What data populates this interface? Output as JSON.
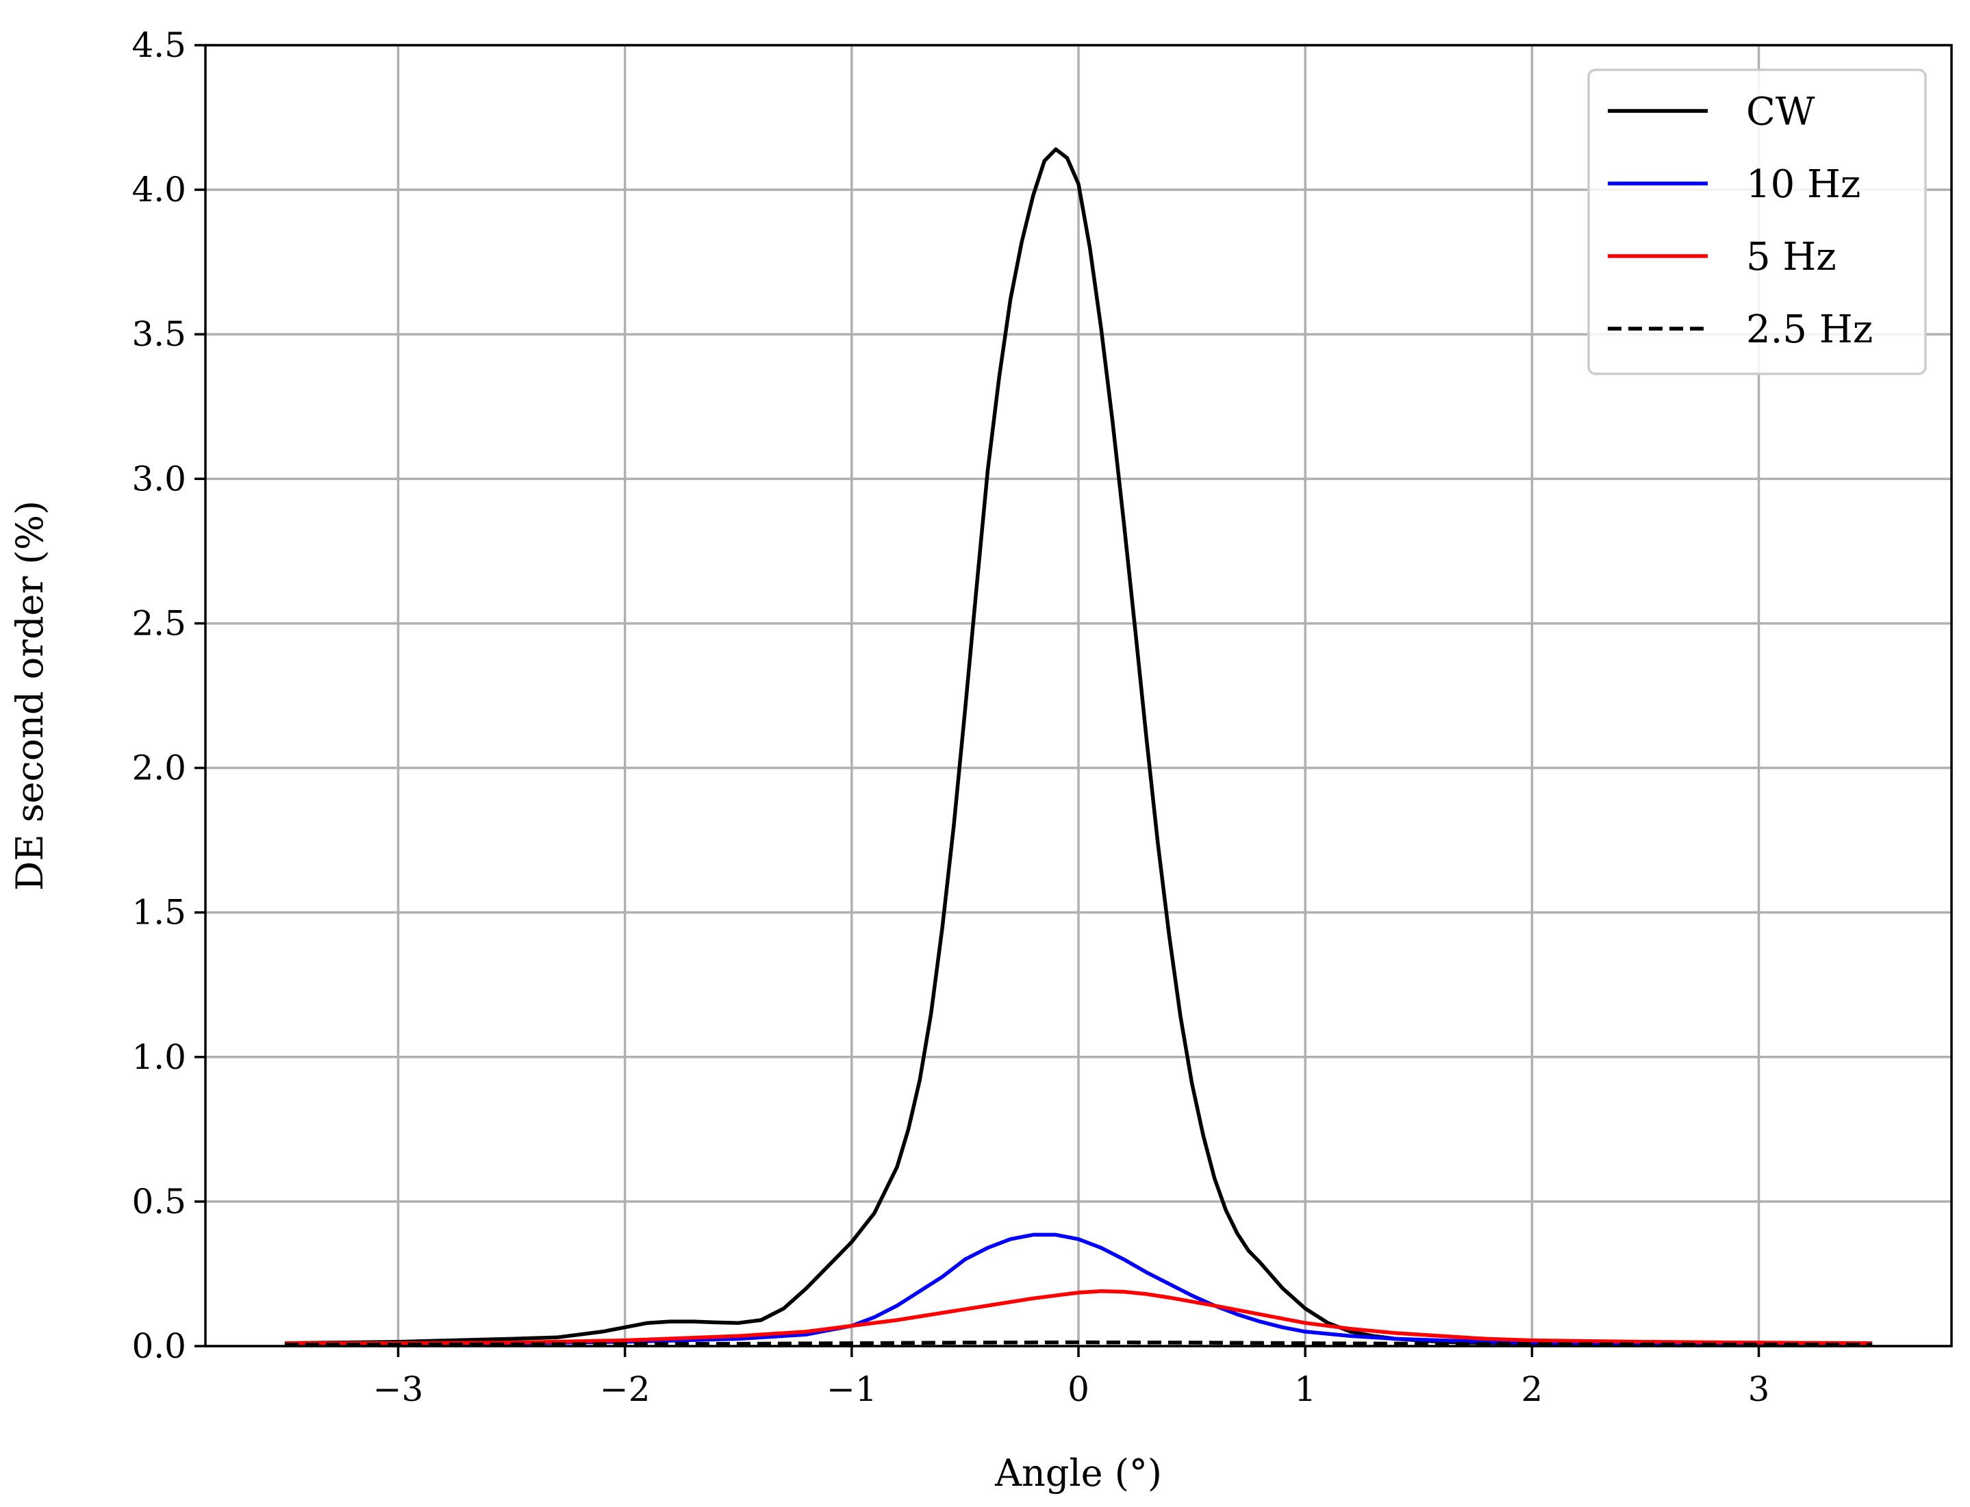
{
  "chart_data": {
    "type": "line",
    "title": "",
    "xlabel": "Angle (°)",
    "ylabel": "DE second order (%)",
    "xlim": [
      -3.85,
      3.85
    ],
    "ylim": [
      0,
      4.5
    ],
    "grid": true,
    "legend_position": "top-right",
    "x_ticks": [
      -3,
      -2,
      -1,
      0,
      1,
      2,
      3
    ],
    "x_tick_labels": [
      "−3",
      "−2",
      "−1",
      "0",
      "1",
      "2",
      "3"
    ],
    "y_ticks": [
      0,
      0.5,
      1,
      1.5,
      2,
      2.5,
      3,
      3.5,
      4,
      4.5
    ],
    "y_tick_labels": [
      "0.0",
      "0.5",
      "1.0",
      "1.5",
      "2.0",
      "2.5",
      "3.0",
      "3.5",
      "4.0",
      "4.5"
    ],
    "series": [
      {
        "name": "CW",
        "color": "#000000",
        "dash": "solid",
        "x": [
          -3.5,
          -3.0,
          -2.5,
          -2.3,
          -2.2,
          -2.1,
          -2.0,
          -1.9,
          -1.8,
          -1.7,
          -1.6,
          -1.5,
          -1.4,
          -1.3,
          -1.2,
          -1.1,
          -1.0,
          -0.9,
          -0.8,
          -0.75,
          -0.7,
          -0.65,
          -0.6,
          -0.55,
          -0.5,
          -0.45,
          -0.4,
          -0.35,
          -0.3,
          -0.25,
          -0.2,
          -0.15,
          -0.1,
          -0.05,
          0.0,
          0.05,
          0.1,
          0.15,
          0.2,
          0.25,
          0.3,
          0.35,
          0.4,
          0.45,
          0.5,
          0.55,
          0.6,
          0.65,
          0.7,
          0.75,
          0.8,
          0.9,
          1.0,
          1.1,
          1.2,
          1.3,
          1.4,
          1.5,
          1.6,
          1.7,
          2.0,
          2.5,
          3.0,
          3.5
        ],
        "values": [
          0.01,
          0.015,
          0.025,
          0.03,
          0.04,
          0.05,
          0.065,
          0.08,
          0.085,
          0.085,
          0.082,
          0.08,
          0.09,
          0.13,
          0.2,
          0.28,
          0.36,
          0.46,
          0.62,
          0.75,
          0.92,
          1.15,
          1.45,
          1.8,
          2.2,
          2.62,
          3.03,
          3.35,
          3.62,
          3.82,
          3.98,
          4.1,
          4.14,
          4.11,
          4.02,
          3.8,
          3.52,
          3.2,
          2.85,
          2.48,
          2.1,
          1.74,
          1.42,
          1.14,
          0.91,
          0.73,
          0.58,
          0.47,
          0.39,
          0.33,
          0.29,
          0.2,
          0.13,
          0.08,
          0.05,
          0.035,
          0.025,
          0.02,
          0.015,
          0.012,
          0.01,
          0.01,
          0.01,
          0.01
        ]
      },
      {
        "name": "10 Hz",
        "color": "#0000ff",
        "dash": "solid",
        "x": [
          -3.5,
          -3.0,
          -2.5,
          -2.0,
          -1.5,
          -1.2,
          -1.0,
          -0.9,
          -0.8,
          -0.7,
          -0.6,
          -0.5,
          -0.4,
          -0.3,
          -0.2,
          -0.1,
          0.0,
          0.1,
          0.2,
          0.3,
          0.4,
          0.5,
          0.6,
          0.7,
          0.8,
          0.9,
          1.0,
          1.2,
          1.4,
          1.6,
          1.8,
          2.0,
          2.5,
          3.0,
          3.5
        ],
        "values": [
          0.01,
          0.01,
          0.01,
          0.015,
          0.025,
          0.04,
          0.07,
          0.1,
          0.14,
          0.19,
          0.24,
          0.3,
          0.34,
          0.37,
          0.385,
          0.385,
          0.37,
          0.34,
          0.3,
          0.255,
          0.215,
          0.175,
          0.14,
          0.11,
          0.085,
          0.065,
          0.05,
          0.035,
          0.025,
          0.02,
          0.015,
          0.012,
          0.01,
          0.01,
          0.01
        ]
      },
      {
        "name": "5 Hz",
        "color": "#ff0000",
        "dash": "solid",
        "x": [
          -3.5,
          -3.0,
          -2.5,
          -2.0,
          -1.5,
          -1.2,
          -1.0,
          -0.8,
          -0.6,
          -0.4,
          -0.2,
          0.0,
          0.1,
          0.2,
          0.3,
          0.4,
          0.6,
          0.8,
          1.0,
          1.2,
          1.4,
          1.6,
          1.8,
          2.0,
          2.5,
          3.0,
          3.5
        ],
        "values": [
          0.01,
          0.01,
          0.012,
          0.02,
          0.035,
          0.05,
          0.07,
          0.09,
          0.115,
          0.14,
          0.165,
          0.185,
          0.19,
          0.188,
          0.18,
          0.168,
          0.14,
          0.11,
          0.08,
          0.06,
          0.045,
          0.035,
          0.025,
          0.02,
          0.015,
          0.012,
          0.01
        ]
      },
      {
        "name": "2.5 Hz",
        "color": "#000000",
        "dash": "dashed",
        "x": [
          -3.5,
          -2.5,
          -1.5,
          -1.0,
          -0.5,
          0.0,
          0.5,
          1.0,
          1.5,
          2.5,
          3.5
        ],
        "values": [
          0.005,
          0.006,
          0.008,
          0.01,
          0.012,
          0.013,
          0.012,
          0.01,
          0.008,
          0.006,
          0.005
        ]
      }
    ]
  }
}
